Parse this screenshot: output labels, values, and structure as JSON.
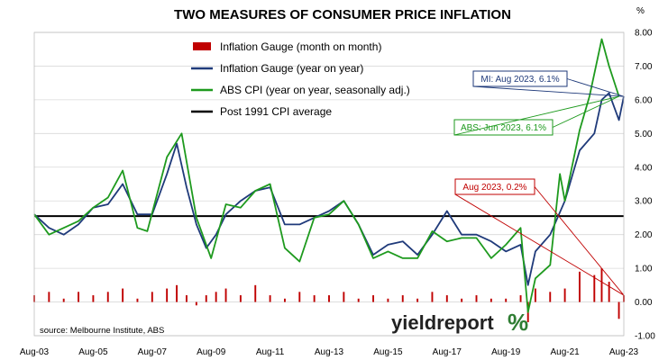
{
  "chart_data": {
    "type": "bar+line",
    "title": "TWO MEASURES OF CONSUMER PRICE INFLATION",
    "y_unit": "%",
    "ylim": [
      -1.0,
      8.0
    ],
    "y_ticks": [
      "8.00",
      "7.00",
      "6.00",
      "5.00",
      "4.00",
      "3.00",
      "2.00",
      "1.00",
      "0.00",
      "-1.00"
    ],
    "x_ticks": [
      "Aug-03",
      "Aug-05",
      "Aug-07",
      "Aug-09",
      "Aug-11",
      "Aug-13",
      "Aug-15",
      "Aug-17",
      "Aug-19",
      "Aug-21",
      "Aug-23"
    ],
    "x_range": [
      "2003-08",
      "2023-08"
    ],
    "grid": "horizontal",
    "legend": {
      "placement": "top-left",
      "entries": [
        {
          "label": "Inflation Gauge (month on month)",
          "color": "#c00000",
          "kind": "bar"
        },
        {
          "label": "Inflation Gauge (year on year)",
          "color": "#1f3a7a",
          "kind": "line"
        },
        {
          "label": "ABS CPI (year on year, seasonally adj.)",
          "color": "#1e9a1e",
          "kind": "line"
        },
        {
          "label": "Post 1991 CPI average",
          "color": "#000000",
          "kind": "line"
        }
      ]
    },
    "reference_line": {
      "value": 2.55
    },
    "series": [
      {
        "name": "Inflation Gauge (year on year)",
        "color": "#1f3a7a",
        "points": [
          [
            "2003-08",
            2.6
          ],
          [
            "2004-02",
            2.2
          ],
          [
            "2004-08",
            2.0
          ],
          [
            "2005-02",
            2.3
          ],
          [
            "2005-08",
            2.8
          ],
          [
            "2006-02",
            2.9
          ],
          [
            "2006-08",
            3.5
          ],
          [
            "2007-02",
            2.6
          ],
          [
            "2007-08",
            2.6
          ],
          [
            "2008-02",
            3.8
          ],
          [
            "2008-06",
            4.7
          ],
          [
            "2008-10",
            3.4
          ],
          [
            "2009-02",
            2.3
          ],
          [
            "2009-06",
            1.6
          ],
          [
            "2009-10",
            2.0
          ],
          [
            "2010-02",
            2.6
          ],
          [
            "2010-08",
            3.0
          ],
          [
            "2011-02",
            3.3
          ],
          [
            "2011-08",
            3.4
          ],
          [
            "2012-02",
            2.3
          ],
          [
            "2012-08",
            2.3
          ],
          [
            "2013-02",
            2.5
          ],
          [
            "2013-08",
            2.7
          ],
          [
            "2014-02",
            3.0
          ],
          [
            "2014-08",
            2.3
          ],
          [
            "2015-02",
            1.4
          ],
          [
            "2015-08",
            1.7
          ],
          [
            "2016-02",
            1.8
          ],
          [
            "2016-08",
            1.4
          ],
          [
            "2017-02",
            2.0
          ],
          [
            "2017-08",
            2.7
          ],
          [
            "2018-02",
            2.0
          ],
          [
            "2018-08",
            2.0
          ],
          [
            "2019-02",
            1.8
          ],
          [
            "2019-08",
            1.5
          ],
          [
            "2020-02",
            1.7
          ],
          [
            "2020-05",
            0.5
          ],
          [
            "2020-08",
            1.5
          ],
          [
            "2021-02",
            2.0
          ],
          [
            "2021-08",
            3.0
          ],
          [
            "2022-02",
            4.5
          ],
          [
            "2022-08",
            5.0
          ],
          [
            "2022-11",
            6.0
          ],
          [
            "2023-02",
            6.2
          ],
          [
            "2023-06",
            5.4
          ],
          [
            "2023-08",
            6.1
          ]
        ]
      },
      {
        "name": "ABS CPI (year on year, seasonally adj.)",
        "color": "#1e9a1e",
        "points": [
          [
            "2003-08",
            2.6
          ],
          [
            "2004-02",
            2.0
          ],
          [
            "2004-08",
            2.2
          ],
          [
            "2005-02",
            2.4
          ],
          [
            "2005-08",
            2.8
          ],
          [
            "2006-02",
            3.1
          ],
          [
            "2006-08",
            3.9
          ],
          [
            "2007-02",
            2.2
          ],
          [
            "2007-06",
            2.1
          ],
          [
            "2008-02",
            4.3
          ],
          [
            "2008-08",
            5.0
          ],
          [
            "2009-02",
            2.5
          ],
          [
            "2009-08",
            1.3
          ],
          [
            "2010-02",
            2.9
          ],
          [
            "2010-08",
            2.8
          ],
          [
            "2011-02",
            3.3
          ],
          [
            "2011-08",
            3.5
          ],
          [
            "2012-02",
            1.6
          ],
          [
            "2012-08",
            1.2
          ],
          [
            "2013-02",
            2.5
          ],
          [
            "2013-08",
            2.6
          ],
          [
            "2014-02",
            3.0
          ],
          [
            "2014-08",
            2.3
          ],
          [
            "2015-02",
            1.3
          ],
          [
            "2015-08",
            1.5
          ],
          [
            "2016-02",
            1.3
          ],
          [
            "2016-08",
            1.3
          ],
          [
            "2017-02",
            2.1
          ],
          [
            "2017-08",
            1.8
          ],
          [
            "2018-02",
            1.9
          ],
          [
            "2018-08",
            1.9
          ],
          [
            "2019-02",
            1.3
          ],
          [
            "2019-08",
            1.7
          ],
          [
            "2020-02",
            2.2
          ],
          [
            "2020-05",
            -0.3
          ],
          [
            "2020-08",
            0.7
          ],
          [
            "2021-02",
            1.1
          ],
          [
            "2021-06",
            3.8
          ],
          [
            "2021-08",
            3.0
          ],
          [
            "2022-02",
            5.1
          ],
          [
            "2022-06",
            6.1
          ],
          [
            "2022-11",
            7.8
          ],
          [
            "2023-02",
            7.0
          ],
          [
            "2023-06",
            6.1
          ]
        ]
      },
      {
        "name": "Inflation Gauge (month on month)",
        "color": "#c00000",
        "kind": "bar",
        "points": [
          [
            "2003-08",
            0.2
          ],
          [
            "2004-02",
            0.3
          ],
          [
            "2004-08",
            0.1
          ],
          [
            "2005-02",
            0.3
          ],
          [
            "2005-08",
            0.2
          ],
          [
            "2006-02",
            0.3
          ],
          [
            "2006-08",
            0.4
          ],
          [
            "2007-02",
            0.1
          ],
          [
            "2007-08",
            0.3
          ],
          [
            "2008-02",
            0.4
          ],
          [
            "2008-06",
            0.5
          ],
          [
            "2008-10",
            0.2
          ],
          [
            "2009-02",
            -0.1
          ],
          [
            "2009-06",
            0.2
          ],
          [
            "2009-10",
            0.3
          ],
          [
            "2010-02",
            0.4
          ],
          [
            "2010-08",
            0.2
          ],
          [
            "2011-02",
            0.5
          ],
          [
            "2011-08",
            0.2
          ],
          [
            "2012-02",
            0.1
          ],
          [
            "2012-08",
            0.3
          ],
          [
            "2013-02",
            0.2
          ],
          [
            "2013-08",
            0.2
          ],
          [
            "2014-02",
            0.3
          ],
          [
            "2014-08",
            0.1
          ],
          [
            "2015-02",
            0.2
          ],
          [
            "2015-08",
            0.1
          ],
          [
            "2016-02",
            0.2
          ],
          [
            "2016-08",
            0.1
          ],
          [
            "2017-02",
            0.3
          ],
          [
            "2017-08",
            0.2
          ],
          [
            "2018-02",
            0.1
          ],
          [
            "2018-08",
            0.2
          ],
          [
            "2019-02",
            0.1
          ],
          [
            "2019-08",
            0.1
          ],
          [
            "2020-02",
            0.2
          ],
          [
            "2020-05",
            -0.6
          ],
          [
            "2020-08",
            0.4
          ],
          [
            "2021-02",
            0.3
          ],
          [
            "2021-08",
            0.4
          ],
          [
            "2022-02",
            0.9
          ],
          [
            "2022-08",
            0.8
          ],
          [
            "2022-11",
            1.0
          ],
          [
            "2023-02",
            0.6
          ],
          [
            "2023-06",
            -0.5
          ],
          [
            "2023-08",
            0.2
          ]
        ]
      }
    ],
    "annotations": [
      {
        "text": "MI: Aug 2023, 6.1%",
        "color": "#1f3a7a",
        "target": [
          "2023-08",
          6.1
        ]
      },
      {
        "text": "ABS: Jun 2023, 6.1%",
        "color": "#1e9a1e",
        "target": [
          "2023-06",
          6.1
        ]
      },
      {
        "text": "Aug 2023, 0.2%",
        "color": "#c00000",
        "target": [
          "2023-08",
          0.2
        ]
      }
    ],
    "source_note": "source: Melbourne Institute, ABS"
  },
  "branding": {
    "name": "yieldreport",
    "symbol": "%"
  }
}
